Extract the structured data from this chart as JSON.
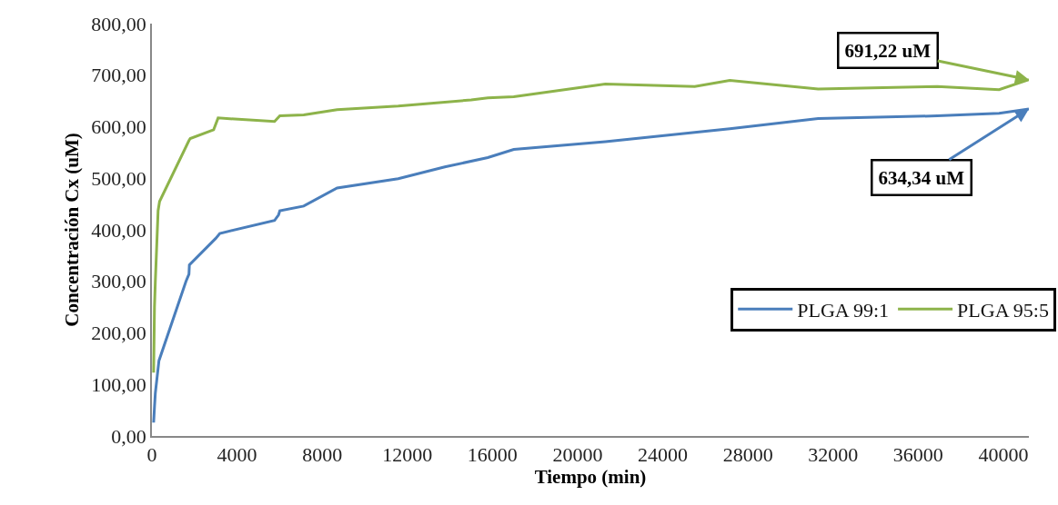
{
  "chart_data": {
    "type": "line",
    "xlabel": "Tiempo (min)",
    "ylabel": "Concentración Cx (uM)",
    "xlim": [
      0,
      41200
    ],
    "xticks": [
      0,
      4000,
      8000,
      12000,
      16000,
      20000,
      24000,
      28000,
      32000,
      36000,
      40000
    ],
    "ylim": [
      0,
      800
    ],
    "yticks": [
      {
        "value": 0,
        "label": "0,00"
      },
      {
        "value": 100,
        "label": "100,00"
      },
      {
        "value": 200,
        "label": "200,00"
      },
      {
        "value": 300,
        "label": "300,00"
      },
      {
        "value": 400,
        "label": "400,00"
      },
      {
        "value": 500,
        "label": "500,00"
      },
      {
        "value": 600,
        "label": "600,00"
      },
      {
        "value": 700,
        "label": "700,00"
      },
      {
        "value": 800,
        "label": "800,00"
      }
    ],
    "grid": false,
    "legend": "bottom right",
    "line_style": "solid",
    "series": [
      {
        "name": "PLGA 99:1",
        "color": "#4a7ebb",
        "x": [
          80,
          120,
          160,
          330,
          1600,
          1740,
          1760,
          2990,
          3190,
          5760,
          5950,
          6010,
          7130,
          8700,
          11570,
          13760,
          15780,
          17000,
          21300,
          25500,
          27150,
          31300,
          36900,
          39800,
          41200
        ],
        "values": [
          26,
          56,
          83,
          146,
          300,
          314,
          332,
          383,
          393,
          418,
          429,
          437,
          446,
          481,
          499,
          522,
          540,
          556,
          571,
          589,
          596,
          616,
          621,
          626,
          634.34
        ]
      },
      {
        "name": "PLGA 95:5",
        "color": "#8db34a",
        "x": [
          80,
          120,
          160,
          290,
          360,
          1740,
          1800,
          2900,
          3110,
          5760,
          6010,
          7130,
          8700,
          11570,
          15000,
          15780,
          17000,
          21300,
          25500,
          27150,
          31300,
          36900,
          39800,
          41200
        ],
        "values": [
          123,
          250,
          300,
          437,
          455,
          573,
          577,
          594,
          617,
          610,
          621,
          623,
          633,
          640,
          652,
          656,
          658,
          683,
          678,
          690,
          673,
          678,
          672,
          691.22
        ]
      }
    ],
    "annotations": [
      {
        "text": "691,22 uM",
        "x": 41200,
        "y": 691.22
      },
      {
        "text": "634,34 uM",
        "x": 41200,
        "y": 634.34
      }
    ]
  }
}
